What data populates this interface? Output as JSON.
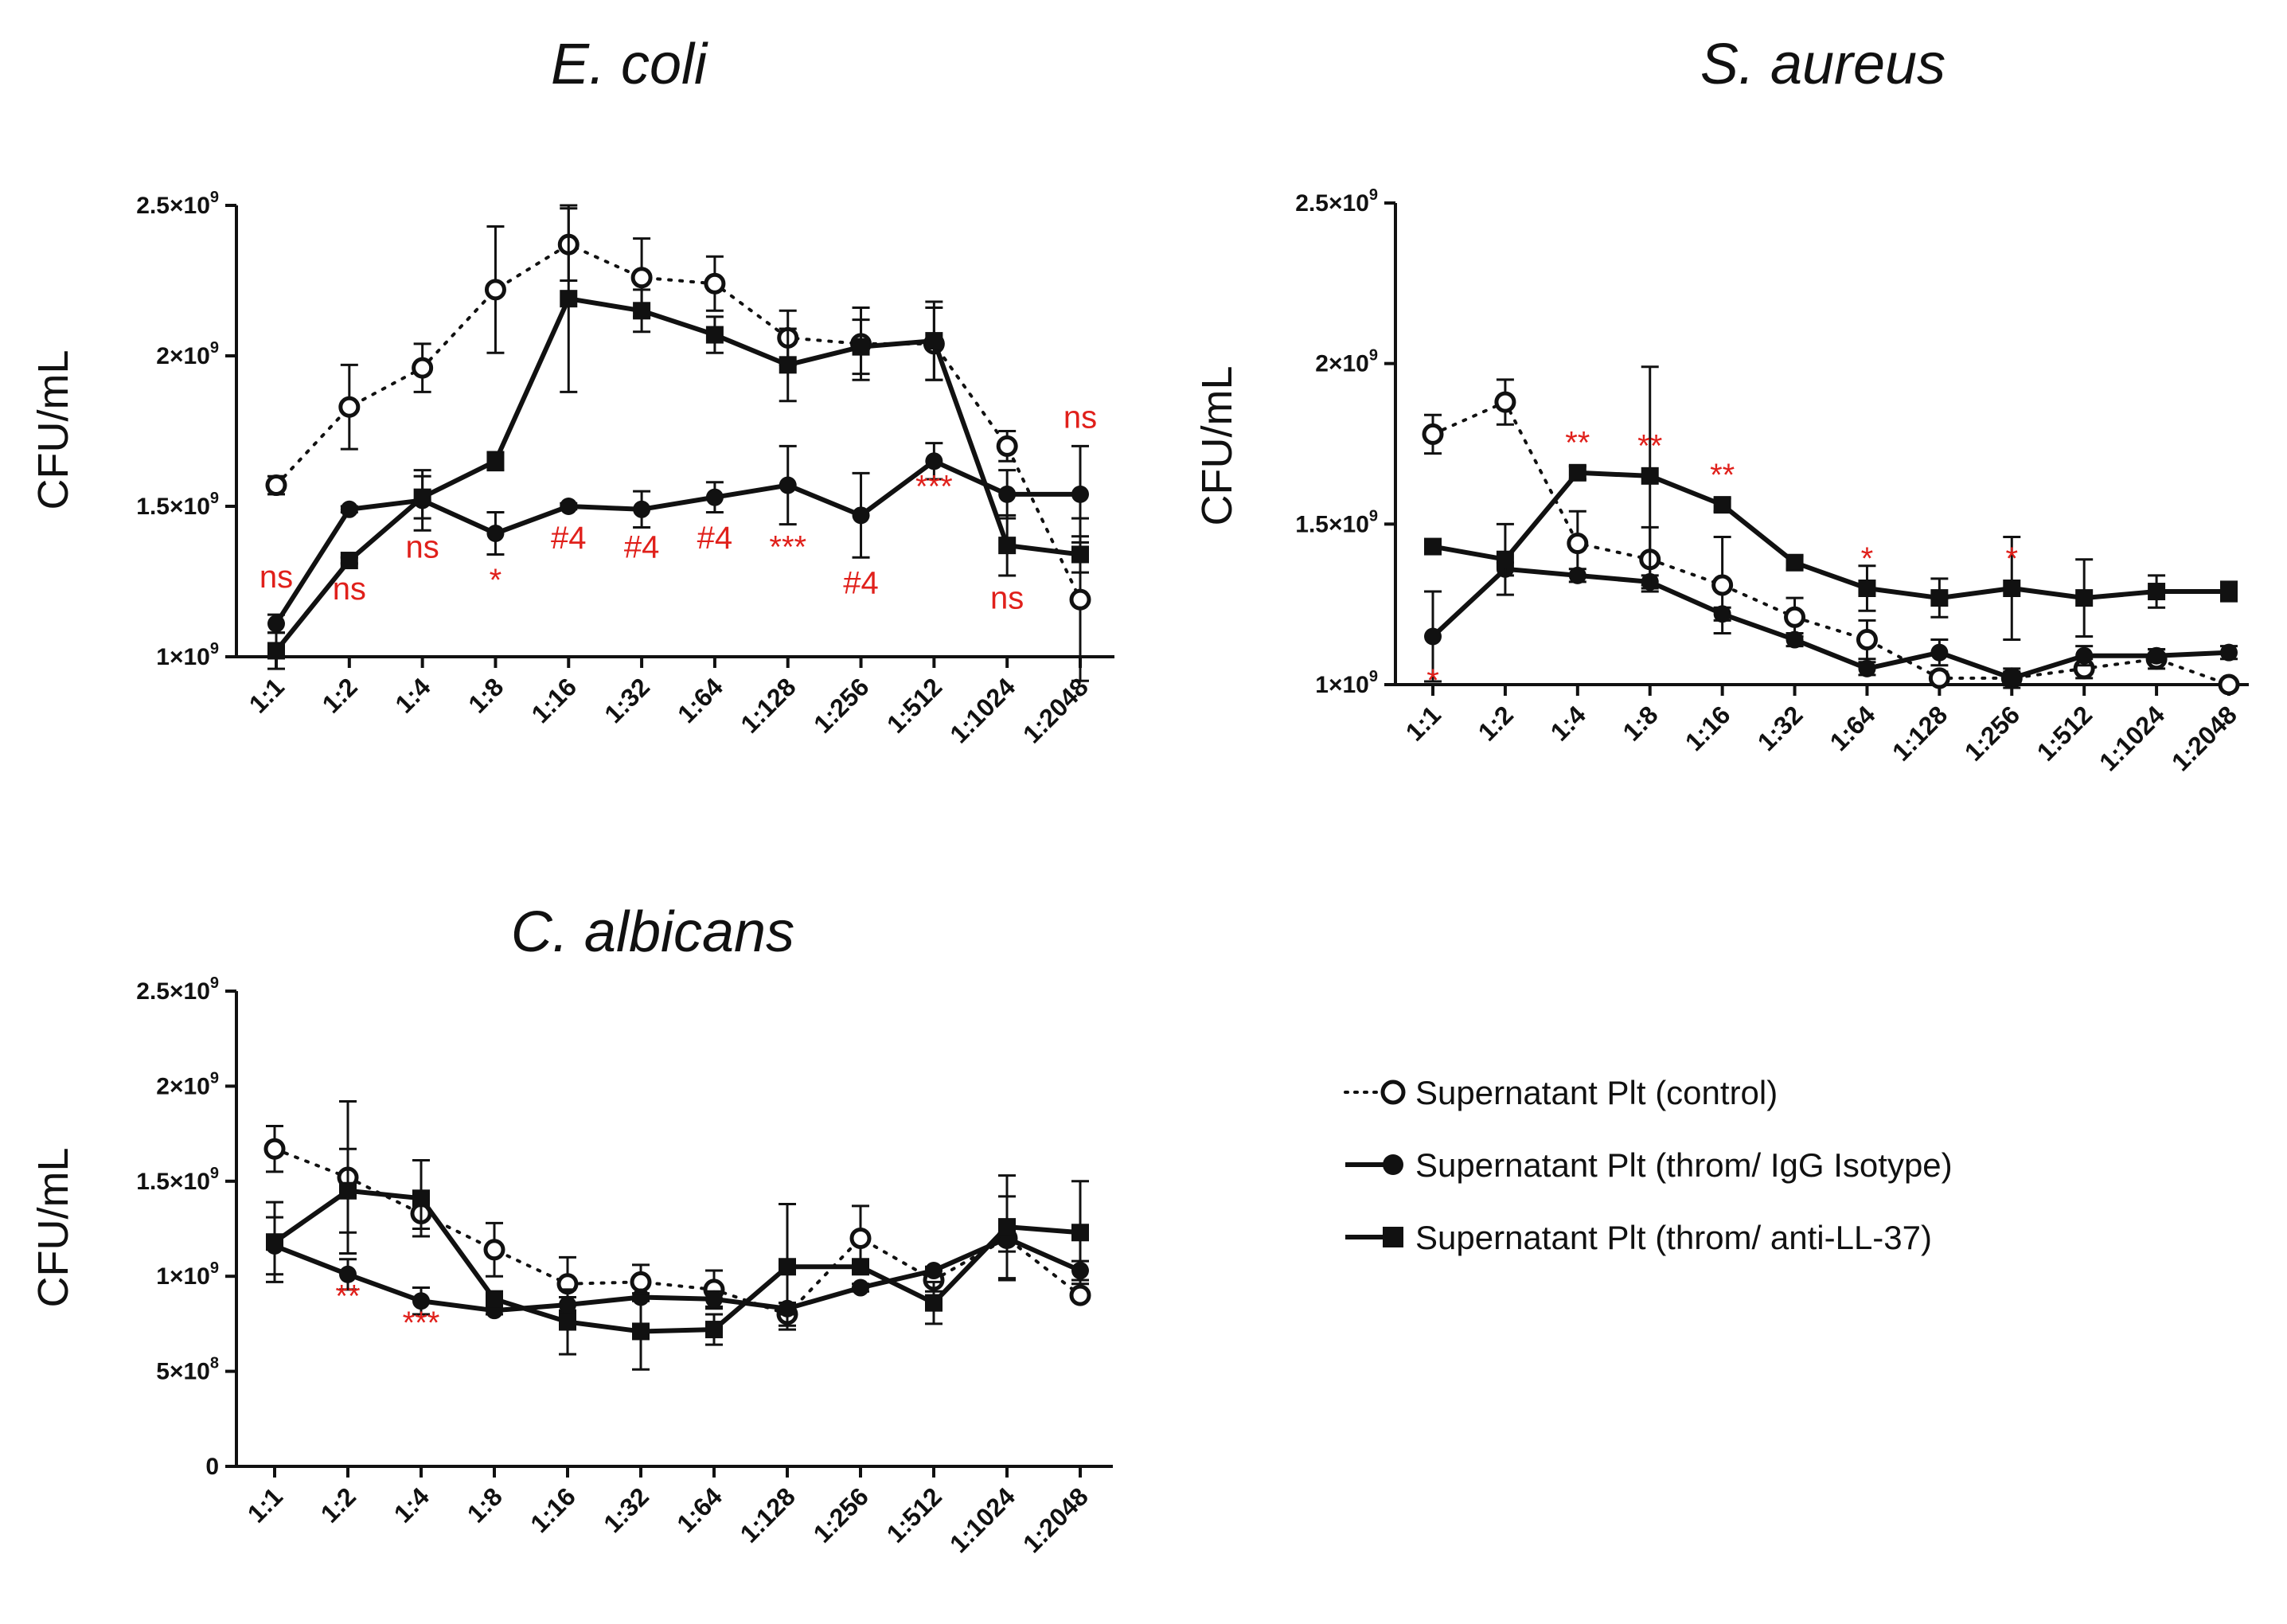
{
  "legend": [
    {
      "key": "control",
      "label": "Supernatant Plt (control)"
    },
    {
      "key": "igg",
      "label": "Supernatant Plt  (throm/ IgG Isotype)"
    },
    {
      "key": "anti",
      "label": "Supernatant Plt  (throm/ anti-LL-37)"
    }
  ],
  "colors": {
    "annotation": "#e0201b",
    "line": "#111111"
  },
  "chart_data": [
    {
      "id": "ecoli",
      "type": "line",
      "title": "E. coli",
      "ylabel": "CFU/mL",
      "ylim": [
        1000000000.0,
        2500000000.0
      ],
      "yticks": [
        1000000000.0,
        1500000000.0,
        2000000000.0,
        2500000000.0
      ],
      "ytick_labels": [
        {
          "m": "1",
          "e": "9"
        },
        {
          "m": "1.5",
          "e": "9"
        },
        {
          "m": "2",
          "e": "9"
        },
        {
          "m": "2.5",
          "e": "9"
        }
      ],
      "categories": [
        "1:1",
        "1:2",
        "1:4",
        "1:8",
        "1:16",
        "1:32",
        "1:64",
        "1:128",
        "1:256",
        "1:512",
        "1:1024",
        "1:2048"
      ],
      "series": [
        {
          "key": "control",
          "name": "Supernatant Plt (control)",
          "values": [
            1570000000.0,
            1830000000.0,
            1960000000.0,
            2220000000.0,
            2370000000.0,
            2260000000.0,
            2240000000.0,
            2060000000.0,
            2040000000.0,
            2040000000.0,
            1700000000.0,
            1190000000.0
          ],
          "errors": [
            30000000.0,
            140000000.0,
            80000000.0,
            210000000.0,
            120000000.0,
            130000000.0,
            90000000.0,
            90000000.0,
            120000000.0,
            120000000.0,
            50000000.0,
            270000000.0
          ]
        },
        {
          "key": "igg",
          "name": "Supernatant Plt  (throm/ IgG Isotype)",
          "values": [
            1110000000.0,
            1490000000.0,
            1520000000.0,
            1410000000.0,
            1500000000.0,
            1490000000.0,
            1530000000.0,
            1570000000.0,
            1470000000.0,
            1650000000.0,
            1540000000.0,
            1540000000.0
          ],
          "errors": [
            30000000.0,
            10000000.0,
            100000000.0,
            70000000.0,
            10000000.0,
            60000000.0,
            50000000.0,
            130000000.0,
            140000000.0,
            60000000.0,
            80000000.0,
            160000000.0
          ]
        },
        {
          "key": "anti",
          "name": "Supernatant Plt  (throm/ anti-LL-37)",
          "values": [
            1020000000.0,
            1320000000.0,
            1530000000.0,
            1650000000.0,
            2190000000.0,
            2150000000.0,
            2070000000.0,
            1970000000.0,
            2030000000.0,
            2050000000.0,
            1370000000.0,
            1340000000.0
          ],
          "errors": [
            60000000.0,
            10000000.0,
            70000000.0,
            30000000.0,
            310000000.0,
            70000000.0,
            60000000.0,
            120000000.0,
            90000000.0,
            130000000.0,
            100000000.0,
            60000000.0
          ]
        }
      ],
      "annotations": [
        {
          "cat": 0,
          "text": "ns",
          "y": 1230000000.0
        },
        {
          "cat": 1,
          "text": "ns",
          "y": 1190000000.0
        },
        {
          "cat": 2,
          "text": "ns",
          "y": 1330000000.0
        },
        {
          "cat": 3,
          "text": "*",
          "y": 1220000000.0
        },
        {
          "cat": 4,
          "text": "#4",
          "y": 1360000000.0
        },
        {
          "cat": 5,
          "text": "#4",
          "y": 1330000000.0
        },
        {
          "cat": 6,
          "text": "#4",
          "y": 1360000000.0
        },
        {
          "cat": 7,
          "text": "***",
          "y": 1330000000.0
        },
        {
          "cat": 8,
          "text": "#4",
          "y": 1210000000.0
        },
        {
          "cat": 9,
          "text": "***",
          "y": 1530000000.0
        },
        {
          "cat": 10,
          "text": "ns",
          "y": 1160000000.0
        },
        {
          "cat": 11,
          "text": "ns",
          "y": 1760000000.0
        }
      ]
    },
    {
      "id": "saureus",
      "type": "line",
      "title": "S. aureus",
      "ylabel": "CFU/mL",
      "ylim": [
        1000000000.0,
        2500000000.0
      ],
      "yticks": [
        1000000000.0,
        1500000000.0,
        2000000000.0,
        2500000000.0
      ],
      "ytick_labels": [
        {
          "m": "1",
          "e": "9"
        },
        {
          "m": "1.5",
          "e": "9"
        },
        {
          "m": "2",
          "e": "9"
        },
        {
          "m": "2.5",
          "e": "9"
        }
      ],
      "categories": [
        "1:1",
        "1:2",
        "1:4",
        "1:8",
        "1:16",
        "1:32",
        "1:64",
        "1:128",
        "1:256",
        "1:512",
        "1:1024",
        "1:2048"
      ],
      "series": [
        {
          "key": "control",
          "name": "Supernatant Plt (control)",
          "values": [
            1780000000.0,
            1880000000.0,
            1440000000.0,
            1390000000.0,
            1310000000.0,
            1210000000.0,
            1140000000.0,
            1020000000.0,
            1020000000.0,
            1050000000.0,
            1080000000.0,
            1000000000.0
          ],
          "errors": [
            60000000.0,
            70000000.0,
            100000000.0,
            100000000.0,
            150000000.0,
            60000000.0,
            60000000.0,
            20000000.0,
            30000000.0,
            30000000.0,
            30000000.0,
            10000000.0
          ]
        },
        {
          "key": "igg",
          "name": "Supernatant Plt  (throm/ IgG Isotype)",
          "values": [
            1150000000.0,
            1360000000.0,
            1340000000.0,
            1320000000.0,
            1220000000.0,
            1140000000.0,
            1050000000.0,
            1100000000.0,
            1020000000.0,
            1090000000.0,
            1090000000.0,
            1100000000.0
          ],
          "errors": [
            140000000.0,
            20000000.0,
            20000000.0,
            20000000.0,
            20000000.0,
            20000000.0,
            20000000.0,
            40000000.0,
            20000000.0,
            30000000.0,
            20000000.0,
            20000000.0
          ]
        },
        {
          "key": "anti",
          "name": "Supernatant Plt  (throm/ anti-LL-37)",
          "values": [
            1430000000.0,
            1390000000.0,
            1660000000.0,
            1650000000.0,
            1560000000.0,
            1380000000.0,
            1300000000.0,
            1270000000.0,
            1300000000.0,
            1270000000.0,
            1290000000.0,
            1290000000.0
          ],
          "errors": [
            10000000.0,
            110000000.0,
            20000000.0,
            340000000.0,
            20000000.0,
            20000000.0,
            70000000.0,
            60000000.0,
            160000000.0,
            120000000.0,
            50000000.0,
            30000000.0
          ]
        }
      ],
      "annotations": [
        {
          "cat": 0,
          "text": "*",
          "y": 980000000.0
        },
        {
          "cat": 2,
          "text": "**",
          "y": 1720000000.0
        },
        {
          "cat": 3,
          "text": "**",
          "y": 1710000000.0
        },
        {
          "cat": 4,
          "text": "**",
          "y": 1620000000.0
        },
        {
          "cat": 6,
          "text": "*",
          "y": 1360000000.0
        },
        {
          "cat": 8,
          "text": "*",
          "y": 1360000000.0
        }
      ]
    },
    {
      "id": "calbicans",
      "type": "line",
      "title": "C. albicans",
      "ylabel": "CFU/mL",
      "ylim": [
        0,
        2500000000.0
      ],
      "yticks": [
        0,
        500000000.0,
        1000000000.0,
        1500000000.0,
        2000000000.0,
        2500000000.0
      ],
      "ytick_labels": [
        {
          "m": "0",
          "e": ""
        },
        {
          "m": "5",
          "e": "8"
        },
        {
          "m": "1",
          "e": "9"
        },
        {
          "m": "1.5",
          "e": "9"
        },
        {
          "m": "2",
          "e": "9"
        },
        {
          "m": "2.5",
          "e": "9"
        }
      ],
      "categories": [
        "1:1",
        "1:2",
        "1:4",
        "1:8",
        "1:16",
        "1:32",
        "1:64",
        "1:128",
        "1:256",
        "1:512",
        "1:1024",
        "1:2048"
      ],
      "series": [
        {
          "key": "control",
          "name": "Supernatant Plt (control)",
          "values": [
            1670000000.0,
            1520000000.0,
            1330000000.0,
            1140000000.0,
            960000000.0,
            970000000.0,
            930000000.0,
            800000000.0,
            1200000000.0,
            980000000.0,
            1200000000.0,
            900000000.0
          ],
          "errors": [
            120000000.0,
            400000000.0,
            80000000.0,
            140000000.0,
            140000000.0,
            90000000.0,
            100000000.0,
            60000000.0,
            170000000.0,
            60000000.0,
            220000000.0,
            20000000.0
          ]
        },
        {
          "key": "igg",
          "name": "Supernatant Plt  (throm/ IgG Isotype)",
          "values": [
            1160000000.0,
            1010000000.0,
            870000000.0,
            820000000.0,
            850000000.0,
            890000000.0,
            880000000.0,
            830000000.0,
            940000000.0,
            1030000000.0,
            1200000000.0,
            1030000000.0
          ],
          "errors": [
            150000000.0,
            80000000.0,
            70000000.0,
            20000000.0,
            40000000.0,
            20000000.0,
            40000000.0,
            30000000.0,
            20000000.0,
            20000000.0,
            70000000.0,
            50000000.0
          ]
        },
        {
          "key": "anti",
          "name": "Supernatant Plt  (throm/ anti-LL-37)",
          "values": [
            1180000000.0,
            1450000000.0,
            1410000000.0,
            880000000.0,
            760000000.0,
            710000000.0,
            720000000.0,
            1050000000.0,
            1050000000.0,
            860000000.0,
            1260000000.0,
            1230000000.0
          ],
          "errors": [
            210000000.0,
            220000000.0,
            200000000.0,
            40000000.0,
            170000000.0,
            200000000.0,
            80000000.0,
            330000000.0,
            20000000.0,
            110000000.0,
            270000000.0,
            270000000.0
          ]
        }
      ],
      "annotations": [
        {
          "cat": 1,
          "text": "**",
          "y": 840000000.0
        },
        {
          "cat": 2,
          "text": "***",
          "y": 700000000.0
        }
      ]
    }
  ]
}
